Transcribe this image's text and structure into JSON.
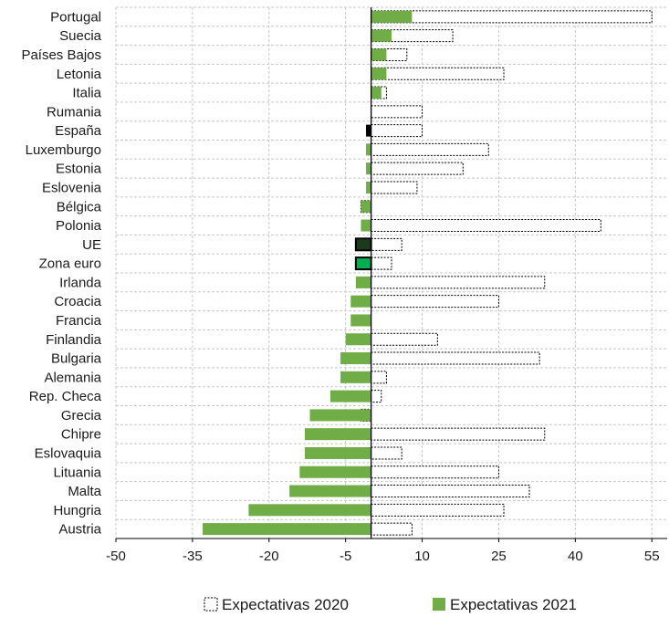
{
  "chart_data": {
    "type": "bar",
    "orientation": "horizontal",
    "categories": [
      "Portugal",
      "Suecia",
      "Países Bajos",
      "Letonia",
      "Italia",
      "Rumania",
      "España",
      "Luxemburgo",
      "Estonia",
      "Eslovenia",
      "Bélgica",
      "Polonia",
      "UE",
      "Zona euro",
      "Irlanda",
      "Croacia",
      "Francia",
      "Finlandia",
      "Bulgaria",
      "Alemania",
      "Rep. Checa",
      "Grecia",
      "Chipre",
      "Eslovaquia",
      "Lituania",
      "Malta",
      "Hungria",
      "Austria"
    ],
    "series": [
      {
        "name": "Expectativas 2020",
        "style": "dashed-outline",
        "values": [
          55,
          16,
          7,
          26,
          3,
          10,
          10,
          23,
          18,
          9,
          -2,
          45,
          6,
          4,
          34,
          25,
          0,
          13,
          33,
          3,
          2,
          -2,
          34,
          6,
          25,
          31,
          26,
          8
        ]
      },
      {
        "name": "Expectativas 2021",
        "color": "#70ad47",
        "values": [
          8,
          4,
          3,
          3,
          2,
          0,
          -1,
          -1,
          -1,
          -1,
          -2,
          -2,
          -3,
          -3,
          -3,
          -4,
          -4,
          -5,
          -6,
          -6,
          -8,
          -12,
          -13,
          -13,
          -14,
          -16,
          -24,
          -33
        ]
      }
    ],
    "highlights": {
      "España": {
        "fill": "#000000"
      },
      "UE": {
        "fill": "#1e3a1e",
        "stroke": "#000000"
      },
      "Zona euro": {
        "fill": "#00b050",
        "stroke": "#000000"
      }
    },
    "xticks": [
      "-50",
      "-35",
      "-20",
      "-5",
      "10",
      "25",
      "40",
      "55"
    ],
    "xlim": [
      -50,
      58
    ],
    "grid": true,
    "legend_position": "bottom"
  },
  "legend": [
    {
      "label": "Expectativas 2020"
    },
    {
      "label": "Expectativas 2021"
    }
  ]
}
